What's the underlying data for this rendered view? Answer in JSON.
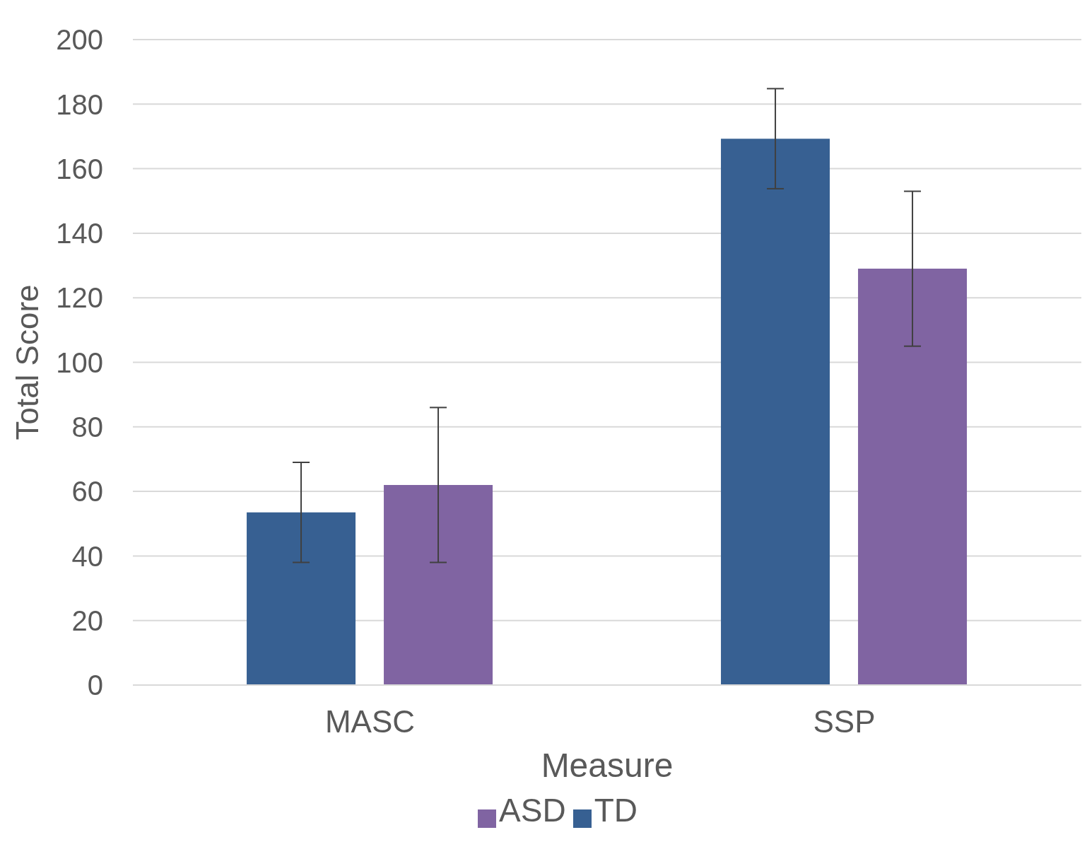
{
  "chart_data": {
    "type": "bar",
    "xlabel": "Measure",
    "ylabel": "Total Score",
    "categories": [
      "MASC",
      "SSP"
    ],
    "series": [
      {
        "name": "TD",
        "color": "#376092",
        "values": [
          53.5,
          169.3
        ],
        "errors": [
          15.5,
          15.5
        ]
      },
      {
        "name": "ASD",
        "color": "#8064a2",
        "values": [
          62,
          129
        ],
        "errors": [
          24,
          24
        ]
      }
    ],
    "ylim": [
      0,
      200
    ],
    "yticks": [
      0,
      20,
      40,
      60,
      80,
      100,
      120,
      140,
      160,
      180,
      200
    ],
    "grid": "y",
    "legend": "bottom"
  }
}
